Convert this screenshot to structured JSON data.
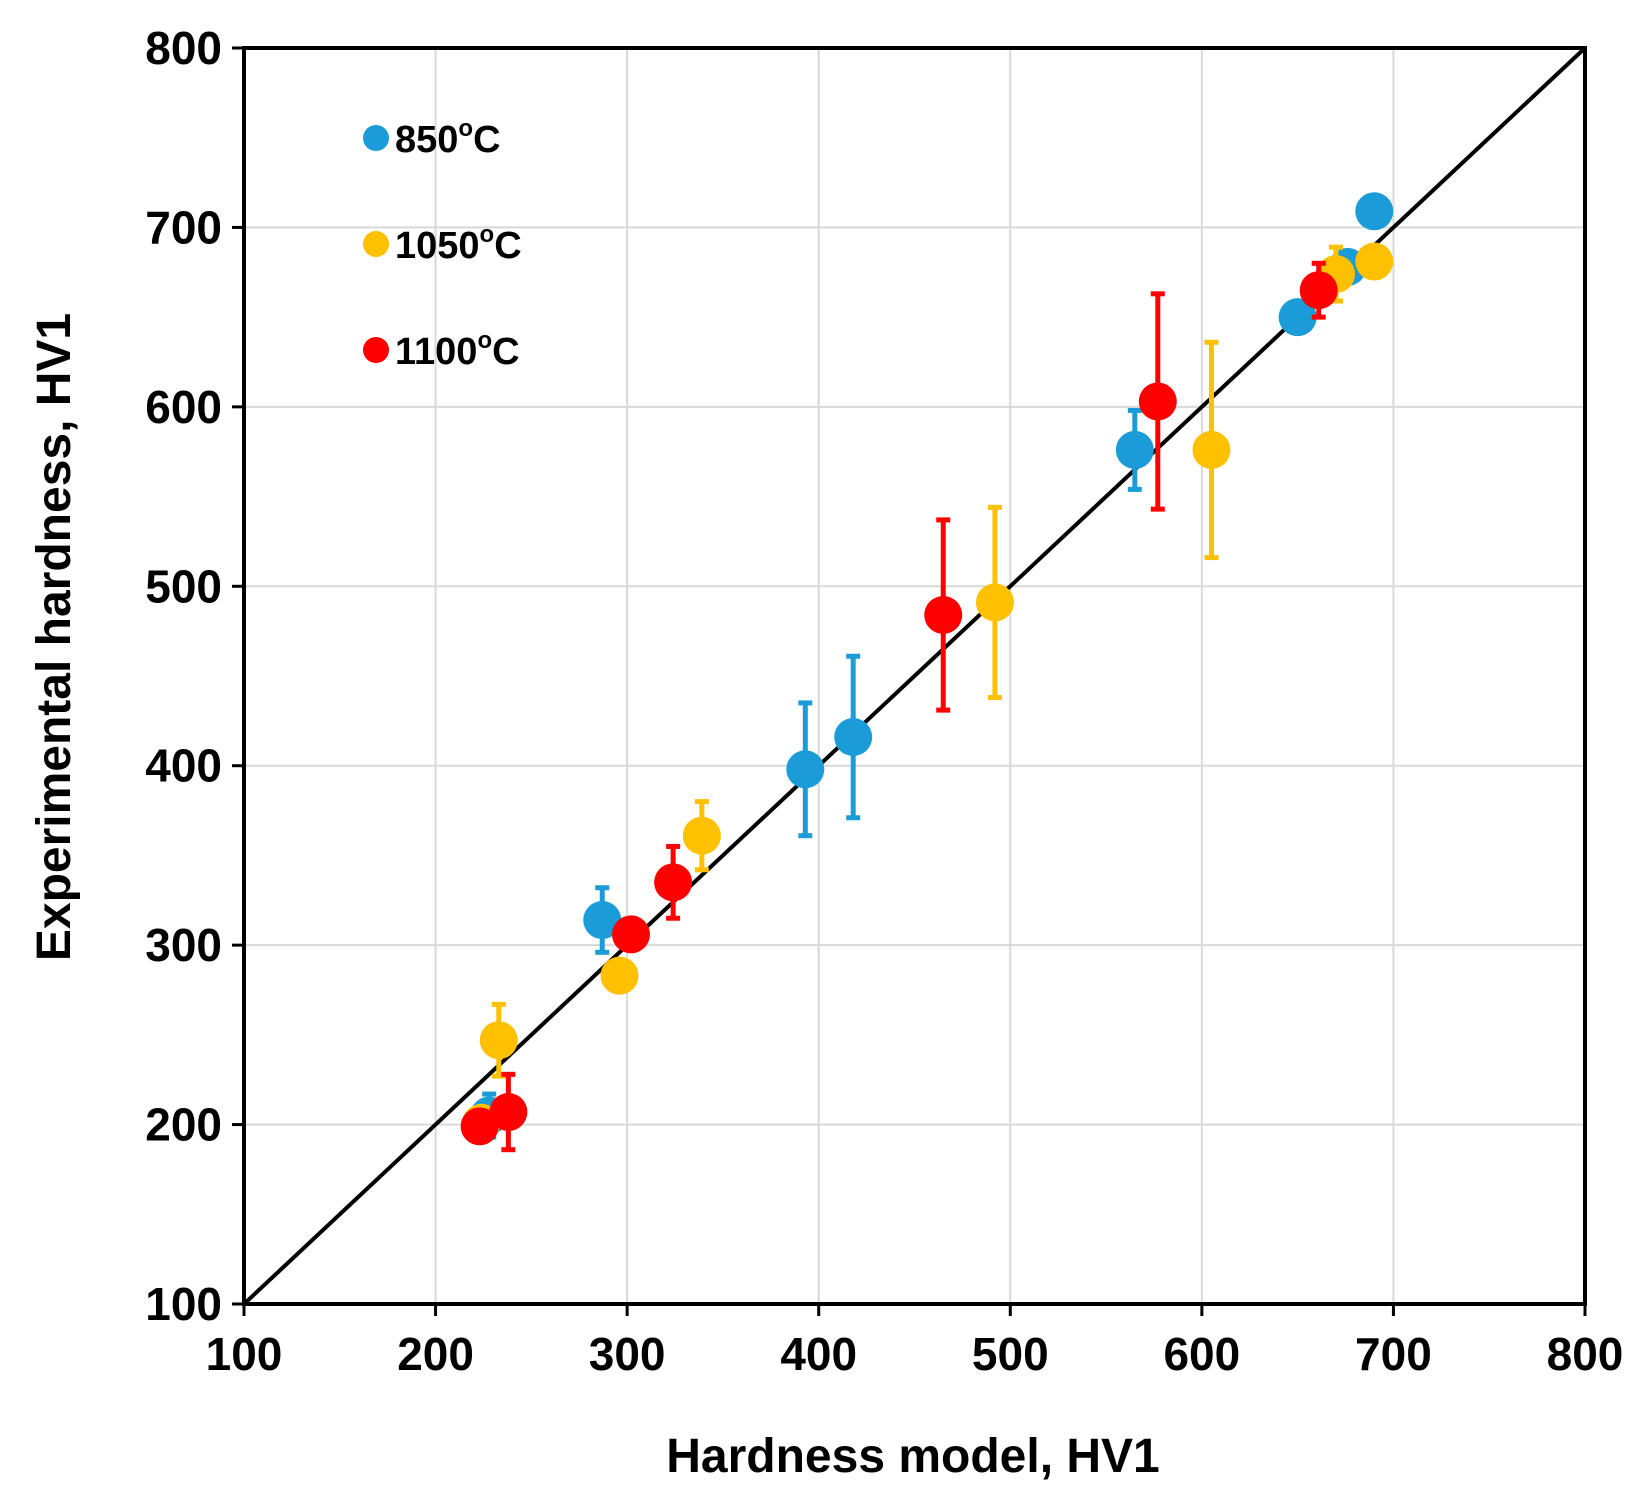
{
  "chart_data": {
    "type": "scatter",
    "title": "",
    "xlabel": "Hardness model, HV1",
    "ylabel": "Experimental hardness, HV1",
    "xlim": [
      100,
      800
    ],
    "ylim": [
      100,
      800
    ],
    "xticks": [
      100,
      200,
      300,
      400,
      500,
      600,
      700,
      800
    ],
    "yticks": [
      100,
      200,
      300,
      400,
      500,
      600,
      700,
      800
    ],
    "grid": true,
    "legend_position": "top-left",
    "reference_line": {
      "type": "y=x",
      "color": "#000000"
    },
    "series": [
      {
        "name": "850",
        "label_suffix": "o",
        "label_unit": "C",
        "color": "#1B9BD7",
        "points": [
          {
            "x": 228,
            "y": 205,
            "err": 12
          },
          {
            "x": 287,
            "y": 314,
            "err": 18
          },
          {
            "x": 393,
            "y": 398,
            "err": 37
          },
          {
            "x": 418,
            "y": 416,
            "err": 45
          },
          {
            "x": 565,
            "y": 576,
            "err": 22
          },
          {
            "x": 650,
            "y": 650,
            "err": 0
          },
          {
            "x": 676,
            "y": 678,
            "err": 0
          },
          {
            "x": 690,
            "y": 709,
            "err": 0
          }
        ]
      },
      {
        "name": "1050",
        "label_suffix": "o",
        "label_unit": "C",
        "color": "#FFC000",
        "points": [
          {
            "x": 224,
            "y": 201,
            "err": 0
          },
          {
            "x": 233,
            "y": 247,
            "err": 20
          },
          {
            "x": 296,
            "y": 283,
            "err": 0
          },
          {
            "x": 339,
            "y": 361,
            "err": 19
          },
          {
            "x": 492,
            "y": 491,
            "err": 53
          },
          {
            "x": 605,
            "y": 576,
            "err": 60
          },
          {
            "x": 670,
            "y": 674,
            "err": 15
          },
          {
            "x": 690,
            "y": 681,
            "err": 0
          }
        ]
      },
      {
        "name": "1100",
        "label_suffix": "o",
        "label_unit": "C",
        "color": "#FF0000",
        "points": [
          {
            "x": 223,
            "y": 199,
            "err": 0
          },
          {
            "x": 238,
            "y": 207,
            "err": 21
          },
          {
            "x": 302,
            "y": 306,
            "err": 0
          },
          {
            "x": 324,
            "y": 335,
            "err": 20
          },
          {
            "x": 465,
            "y": 484,
            "err": 53
          },
          {
            "x": 577,
            "y": 603,
            "err": 60
          },
          {
            "x": 661,
            "y": 665,
            "err": 15
          }
        ]
      }
    ]
  }
}
